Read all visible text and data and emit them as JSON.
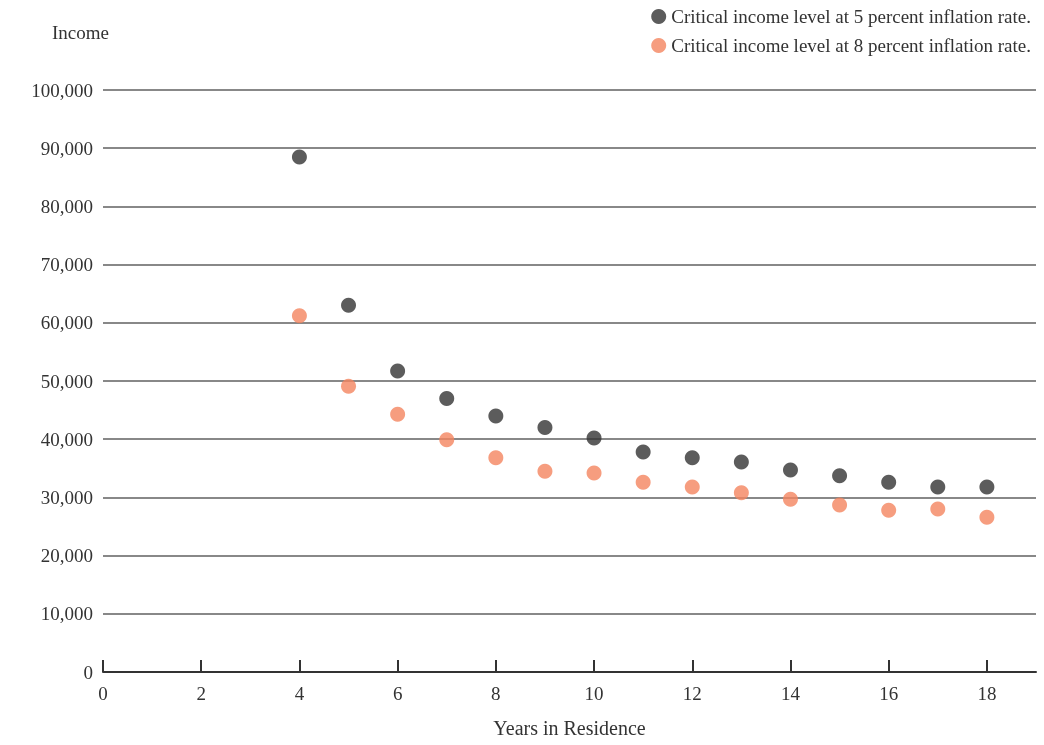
{
  "chart_data": {
    "type": "scatter",
    "xlabel": "Years in Residence",
    "ylabel": "Income",
    "x": [
      4,
      5,
      6,
      7,
      8,
      9,
      10,
      11,
      12,
      13,
      14,
      15,
      16,
      17,
      18
    ],
    "series": [
      {
        "name": "Critical income level at 5 percent inflation rate.",
        "color": "#333333",
        "values": [
          88500,
          63000,
          51700,
          47000,
          44000,
          42000,
          40200,
          37800,
          36800,
          36100,
          34700,
          33700,
          32600,
          31800,
          31800
        ]
      },
      {
        "name": "Critical income level at 8 percent inflation rate.",
        "color": "#f4845f",
        "values": [
          61200,
          49100,
          44300,
          39900,
          36800,
          34500,
          34200,
          32600,
          31800,
          30800,
          29700,
          28700,
          27800,
          28000,
          26600
        ]
      }
    ],
    "xlim": [
      0,
      19
    ],
    "xticks": [
      0,
      2,
      4,
      6,
      8,
      10,
      12,
      14,
      16,
      18
    ],
    "ylim": [
      0,
      100000
    ],
    "yticks": [
      0,
      {
        "value": 10000,
        "label": "10,000"
      },
      {
        "value": 20000,
        "label": "20,000"
      },
      {
        "value": 30000,
        "label": "30,000"
      },
      {
        "value": 40000,
        "label": "40,000"
      },
      {
        "value": 50000,
        "label": "50,000"
      },
      {
        "value": 60000,
        "label": "60,000"
      },
      {
        "value": 70000,
        "label": "70,000"
      },
      {
        "value": 80000,
        "label": "80,000"
      },
      {
        "value": 90000,
        "label": "90,000"
      },
      {
        "value": 100000,
        "label": "100,000"
      }
    ],
    "grid": "y",
    "legend": "top right",
    "marker": "circle"
  }
}
